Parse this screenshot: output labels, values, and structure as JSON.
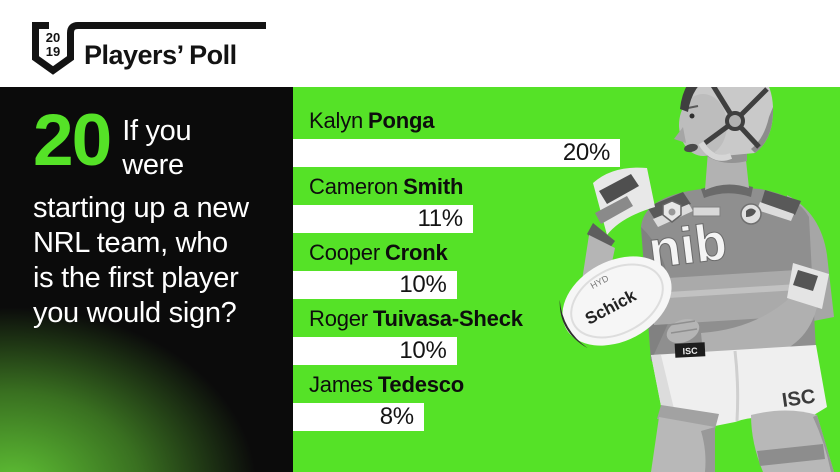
{
  "header": {
    "logo": {
      "year_top": "20",
      "year_bottom": "19",
      "title": "Players’ Poll"
    }
  },
  "question": {
    "number": "20",
    "intro_lines": [
      "If you",
      "were"
    ],
    "lines": [
      "starting up a new",
      "NRL team, who",
      "is the first player",
      "you would sign?"
    ]
  },
  "chart_data": {
    "type": "bar",
    "orientation": "horizontal",
    "title": "If you were starting up a new NRL team, who is the first player you would sign?",
    "categories": [
      "Kalyn Ponga",
      "Cameron Smith",
      "Cooper Cronk",
      "Roger Tuivasa-Sheck",
      "James Tedesco"
    ],
    "values": [
      20,
      11,
      10,
      10,
      8
    ],
    "unit": "%",
    "xlim": [
      0,
      33
    ],
    "bar_color": "#ffffff",
    "value_label_inside_bar": true,
    "rows": [
      {
        "first": "Kalyn",
        "last": "Ponga",
        "value": 20,
        "pct_label": "20%"
      },
      {
        "first": "Cameron",
        "last": "Smith",
        "value": 11,
        "pct_label": "11%"
      },
      {
        "first": "Cooper",
        "last": "Cronk",
        "value": 10,
        "pct_label": "10%"
      },
      {
        "first": "Roger",
        "last": "Tuivasa-Sheck",
        "value": 10,
        "pct_label": "10%"
      },
      {
        "first": "James",
        "last": "Tedesco",
        "value": 8,
        "pct_label": "8%"
      }
    ]
  },
  "player_photo": {
    "jersey_text": "nib",
    "ball_text": "Schick",
    "ball_text_small": "HYD",
    "shorts_tag": "ISC",
    "shorts_hip_text": "ISC"
  },
  "colors": {
    "green": "#55e227",
    "black": "#0b0b0b",
    "white": "#ffffff",
    "text_dark": "#0d0d0d"
  }
}
